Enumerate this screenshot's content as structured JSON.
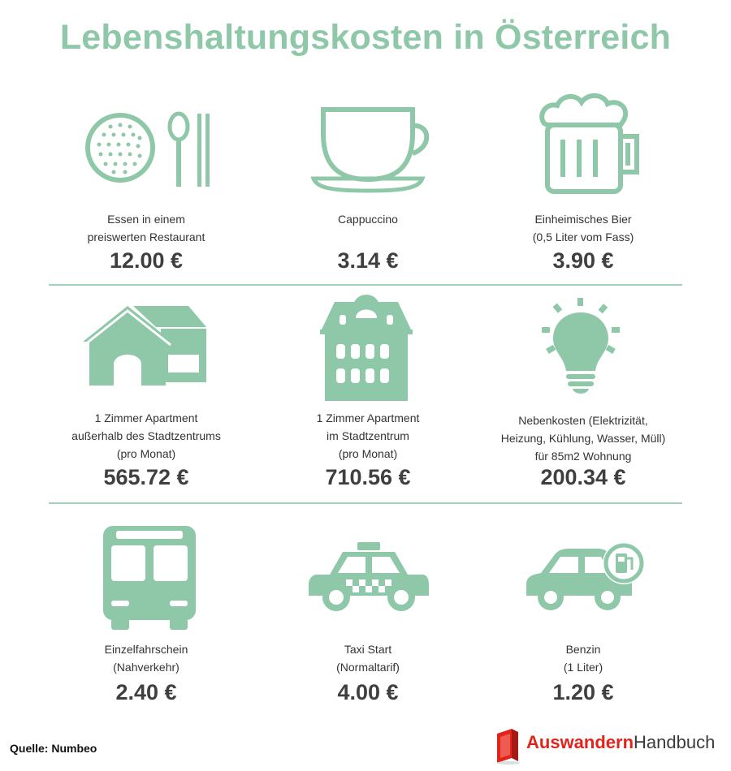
{
  "title": "Lebenshaltungskosten in Österreich",
  "items": [
    {
      "icon": "restaurant-plate-icon",
      "lines": [
        "Essen in einem",
        "preiswerten Restaurant"
      ],
      "price": "12.00 €"
    },
    {
      "icon": "coffee-cup-icon",
      "lines": [
        "Cappuccino"
      ],
      "price": "3.14 €"
    },
    {
      "icon": "beer-mug-icon",
      "lines": [
        "Einheimisches Bier",
        "(0,5 Liter vom Fass)"
      ],
      "price": "3.90 €"
    },
    {
      "icon": "house-icon",
      "lines": [
        "1 Zimmer Apartment",
        "außerhalb des Stadtzentrums",
        "(pro Monat)"
      ],
      "price": "565.72 €"
    },
    {
      "icon": "apartment-building-icon",
      "lines": [
        "1 Zimmer Apartment",
        "im Stadtzentrum",
        "(pro Monat)"
      ],
      "price": "710.56 €"
    },
    {
      "icon": "light-bulb-icon",
      "lines": [
        "Nebenkosten (Elektrizität,",
        "Heizung, Kühlung, Wasser, Müll)",
        "für 85m2 Wohnung"
      ],
      "price": "200.34 €"
    },
    {
      "icon": "bus-icon",
      "lines": [
        "Einzelfahrschein",
        "(Nahverkehr)"
      ],
      "price": "2.40 €"
    },
    {
      "icon": "taxi-icon",
      "lines": [
        "Taxi Start",
        "(Normaltarif)"
      ],
      "price": "4.00 €"
    },
    {
      "icon": "car-fuel-icon",
      "lines": [
        "Benzin",
        "(1 Liter)"
      ],
      "price": "1.20 €"
    }
  ],
  "source": "Quelle: Numbeo",
  "logo": {
    "part1": "Auswandern",
    "part2": "Handbuch"
  },
  "colors": {
    "accent": "#8ec8a9",
    "text": "#333333",
    "logo_red": "#e0241c"
  }
}
